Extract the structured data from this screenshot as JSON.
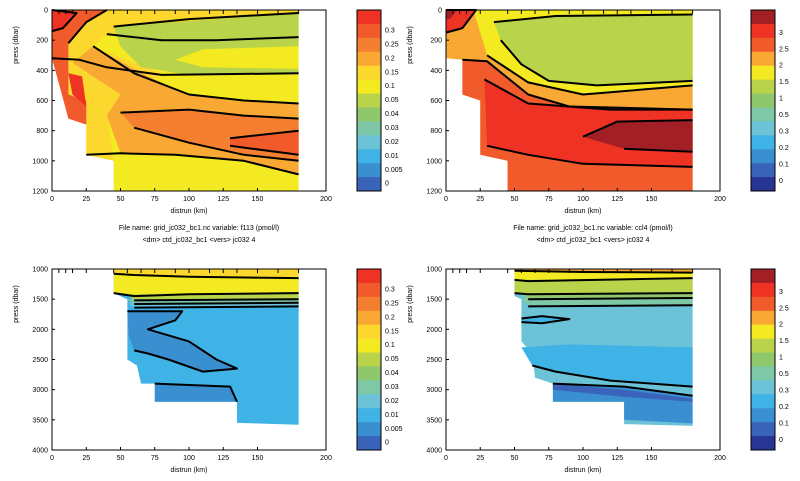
{
  "chart_data": [
    {
      "type": "heatmap",
      "xlabel": "distrun (km)",
      "ylabel": "press (dbar)",
      "xlim": [
        0,
        200
      ],
      "ylim": [
        1200,
        0
      ],
      "y_reversed": true,
      "xticks": [
        0,
        25,
        50,
        75,
        100,
        125,
        150,
        200
      ],
      "yticks": [
        0,
        200,
        400,
        600,
        800,
        1000,
        1200
      ],
      "caption": [
        "File name: grid_jc032_bc1.nc   variable: f113 (pmol/l)",
        "<dm> ctd_jc032_bc1 <vers> jc032   4"
      ],
      "colorbar_ticks": [
        "0.3",
        "0.25",
        "0.2",
        "0.15",
        "0.1",
        "0.05",
        "0.04",
        "0.03",
        "0.02",
        "0.01",
        "0.005",
        "0"
      ],
      "colorbar_colors": [
        "#ee3224",
        "#f15a2b",
        "#f47f30",
        "#f9a833",
        "#fcd82e",
        "#f4ea22",
        "#b9d44a",
        "#8fc76c",
        "#7ec8a8",
        "#6cc3d8",
        "#3fb2e6",
        "#3a8fd0",
        "#3a63ba"
      ],
      "bands_km": [
        {
          "x": 0,
          "levels": [
            0,
            1200
          ]
        },
        {
          "x": 180,
          "levels": [
            0,
            1200
          ]
        }
      ],
      "grid": false,
      "legend": "colorbar-right"
    },
    {
      "type": "heatmap",
      "xlabel": "distrun (km)",
      "ylabel": "press (dbar)",
      "xlim": [
        0,
        200
      ],
      "ylim": [
        1200,
        0
      ],
      "y_reversed": true,
      "xticks": [
        0,
        25,
        50,
        75,
        100,
        125,
        150,
        200
      ],
      "yticks": [
        0,
        200,
        400,
        600,
        800,
        1000,
        1200
      ],
      "caption": [
        "File name: grid_jc032_bc1.nc   variable: ccl4 (pmol/l)",
        "<dm> ctd_jc032_bc1 <vers> jc032   4"
      ],
      "colorbar_ticks": [
        "3",
        "2.5",
        "2",
        "1.5",
        "1",
        "0.5",
        "0.3",
        "0.2",
        "0.1",
        "0"
      ],
      "colorbar_colors": [
        "#a31f26",
        "#ee3224",
        "#f15a2b",
        "#f9a833",
        "#f4ea22",
        "#b9d44a",
        "#8fc76c",
        "#7ec8a8",
        "#6cc3d8",
        "#3fb2e6",
        "#3a8fd0",
        "#3a63ba",
        "#283593"
      ],
      "grid": false,
      "legend": "colorbar-right"
    },
    {
      "type": "heatmap",
      "xlabel": "distrun (km)",
      "ylabel": "press (dbar)",
      "xlim": [
        0,
        200
      ],
      "ylim": [
        4000,
        1000
      ],
      "y_reversed": true,
      "xticks": [
        0,
        25,
        50,
        75,
        100,
        125,
        150,
        200
      ],
      "yticks": [
        1000,
        1500,
        2000,
        2500,
        3000,
        3500,
        4000
      ],
      "colorbar_ticks": [
        "0.3",
        "0.25",
        "0.2",
        "0.15",
        "0.1",
        "0.05",
        "0.04",
        "0.03",
        "0.02",
        "0.01",
        "0.005",
        "0"
      ],
      "colorbar_colors": [
        "#ee3224",
        "#f15a2b",
        "#f47f30",
        "#f9a833",
        "#fcd82e",
        "#f4ea22",
        "#b9d44a",
        "#8fc76c",
        "#7ec8a8",
        "#6cc3d8",
        "#3fb2e6",
        "#3a8fd0",
        "#3a63ba"
      ],
      "grid": false,
      "legend": "colorbar-right"
    },
    {
      "type": "heatmap",
      "xlabel": "distrun (km)",
      "ylabel": "press (dbar)",
      "xlim": [
        0,
        200
      ],
      "ylim": [
        4000,
        1000
      ],
      "y_reversed": true,
      "xticks": [
        0,
        25,
        50,
        75,
        100,
        125,
        150,
        200
      ],
      "yticks": [
        1000,
        1500,
        2000,
        2500,
        3000,
        3500,
        4000
      ],
      "colorbar_ticks": [
        "3",
        "2.5",
        "2",
        "1.5",
        "1",
        "0.5",
        "0.3",
        "0.2",
        "0.1",
        "0"
      ],
      "colorbar_colors": [
        "#a31f26",
        "#ee3224",
        "#f15a2b",
        "#f9a833",
        "#f4ea22",
        "#b9d44a",
        "#8fc76c",
        "#7ec8a8",
        "#6cc3d8",
        "#3fb2e6",
        "#3a8fd0",
        "#3a63ba",
        "#283593"
      ],
      "grid": false,
      "legend": "colorbar-right"
    }
  ]
}
